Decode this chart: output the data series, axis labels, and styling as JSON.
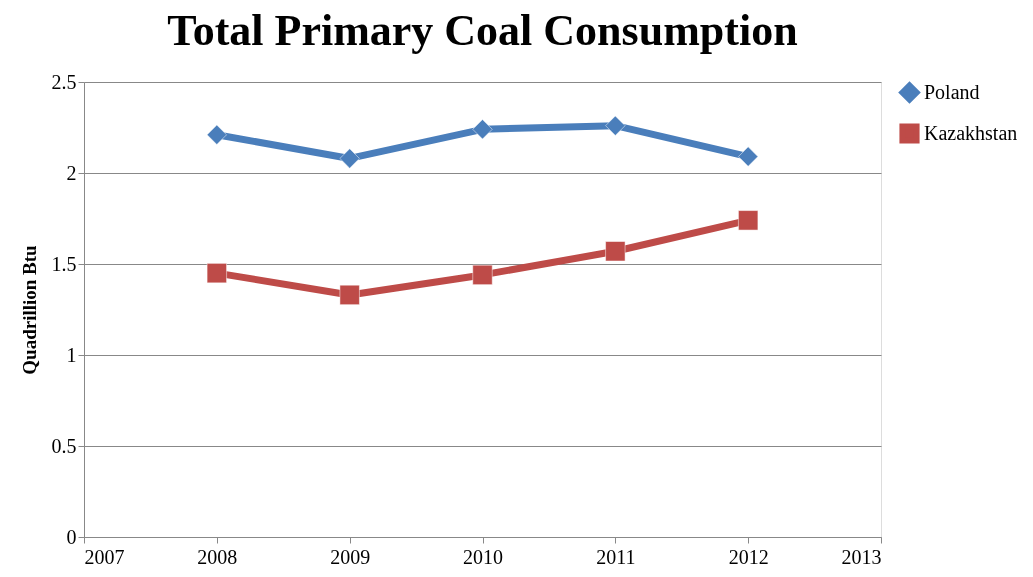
{
  "chart_data": {
    "type": "line",
    "title": "Total Primary Coal Consumption",
    "ylabel": "Quadrillion Btu",
    "x": [
      2008,
      2009,
      2010,
      2011,
      2012
    ],
    "series": [
      {
        "name": "Poland",
        "color": "#4a7ebb",
        "marker": "diamond",
        "values": [
          2.21,
          2.08,
          2.24,
          2.26,
          2.09
        ]
      },
      {
        "name": "Kazakhstan",
        "color": "#be4b48",
        "marker": "square",
        "values": [
          1.45,
          1.33,
          1.44,
          1.57,
          1.74
        ]
      }
    ],
    "xlim": [
      2007,
      2013
    ],
    "xticks": [
      2007,
      2008,
      2009,
      2010,
      2011,
      2012,
      2013
    ],
    "ylim": [
      0,
      2.5
    ],
    "yticks": [
      0,
      0.5,
      1,
      1.5,
      2,
      2.5
    ],
    "grid": "y",
    "legend": "right"
  }
}
